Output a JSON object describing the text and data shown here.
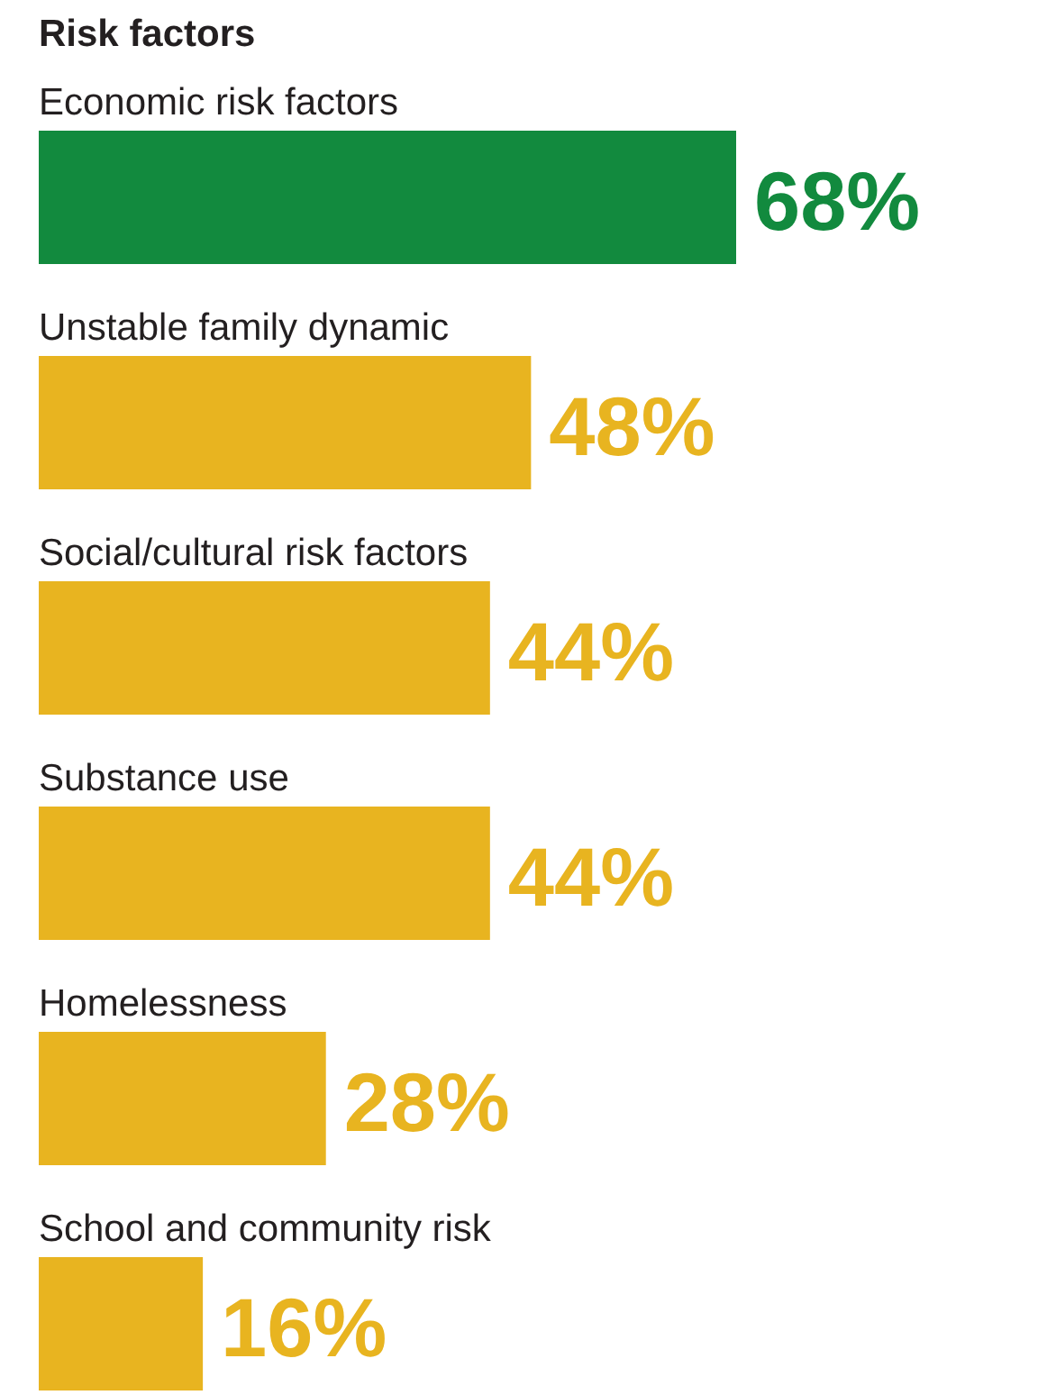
{
  "chart_data": {
    "type": "bar",
    "orientation": "horizontal",
    "title": "Risk factors",
    "categories": [
      "Economic risk factors",
      "Unstable family dynamic",
      "Social/cultural risk factors",
      "Substance use",
      "Homelessness",
      "School and community risk"
    ],
    "values": [
      68,
      48,
      44,
      44,
      28,
      16
    ],
    "colors": [
      "#128a3e",
      "#e8b420",
      "#e8b420",
      "#e8b420",
      "#e8b420",
      "#e8b420"
    ],
    "value_labels": [
      "68%",
      "48%",
      "44%",
      "44%",
      "28%",
      "16%"
    ]
  }
}
